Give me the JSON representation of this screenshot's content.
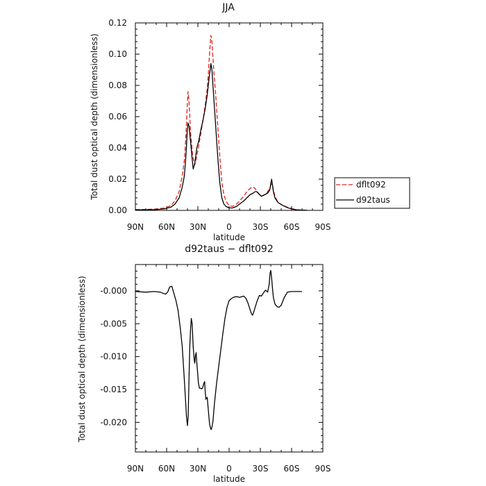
{
  "chart_data": [
    {
      "type": "line",
      "title": "JJA",
      "xlabel": "latitude",
      "ylabel": "Total dust optical depth (dimensionless)",
      "xlim": [
        90,
        -90
      ],
      "ylim": [
        0,
        0.12
      ],
      "x_ticks": [
        "90N",
        "60N",
        "30N",
        "0",
        "30S",
        "60S",
        "90S"
      ],
      "y_ticks": [
        "0.00",
        "0.02",
        "0.04",
        "0.06",
        "0.08",
        "0.10",
        "0.12"
      ],
      "legend": {
        "placement": "right",
        "entries": [
          "dflt092",
          "d92taus"
        ]
      },
      "series": [
        {
          "name": "dflt092",
          "color": "#e0201b",
          "dash": "dashed",
          "x": [
            90,
            80,
            70,
            62,
            56,
            52,
            48,
            45,
            43,
            42,
            41,
            40.3,
            39.5,
            38.5,
            37,
            35,
            33,
            31,
            29,
            27,
            25,
            23,
            21,
            20,
            19,
            18.2,
            17.5,
            16.5,
            15,
            13,
            11,
            9,
            7,
            5,
            3,
            0,
            -3,
            -7,
            -10,
            -14,
            -17,
            -20,
            -23,
            -25,
            -27,
            -29,
            -31,
            -34,
            -37,
            -39,
            -40,
            -40.8,
            -41.7,
            -42.5,
            -44,
            -47,
            -52,
            -57,
            -61,
            -65,
            -70,
            -75
          ],
          "y": [
            0.0005,
            0.0006,
            0.0009,
            0.0015,
            0.003,
            0.006,
            0.012,
            0.022,
            0.032,
            0.042,
            0.055,
            0.065,
            0.076,
            0.07,
            0.05,
            0.035,
            0.029,
            0.035,
            0.042,
            0.05,
            0.058,
            0.067,
            0.078,
            0.087,
            0.098,
            0.106,
            0.112,
            0.108,
            0.092,
            0.075,
            0.055,
            0.035,
            0.018,
            0.01,
            0.006,
            0.003,
            0.0025,
            0.004,
            0.006,
            0.009,
            0.012,
            0.014,
            0.015,
            0.014,
            0.012,
            0.01,
            0.009,
            0.01,
            0.012,
            0.014,
            0.016,
            0.017,
            0.016,
            0.013,
            0.009,
            0.005,
            0.003,
            0.0017,
            0.001,
            0.0004,
            0.0002,
            0.0001
          ]
        },
        {
          "name": "d92taus",
          "color": "#000000",
          "dash": "solid",
          "x": [
            90,
            80,
            70,
            62,
            56,
            52,
            48,
            45,
            43,
            42,
            41,
            40.3,
            39.5,
            38.5,
            37,
            35.5,
            34.5,
            33,
            31,
            29,
            27,
            25,
            23,
            21,
            20,
            19,
            18.2,
            17.5,
            16.5,
            15,
            13,
            11,
            9,
            7,
            5,
            3,
            0,
            -3,
            -7,
            -10,
            -14,
            -17,
            -20,
            -23,
            -25,
            -26.5,
            -28,
            -31,
            -34,
            -37,
            -39,
            -40,
            -40.8,
            -41.7,
            -42.5,
            -44,
            -47,
            -52,
            -57,
            -61,
            -65,
            -70,
            -75
          ],
          "y": [
            0.0003,
            0.0004,
            0.0005,
            0.001,
            0.002,
            0.004,
            0.008,
            0.015,
            0.022,
            0.03,
            0.04,
            0.05,
            0.056,
            0.054,
            0.044,
            0.033,
            0.0265,
            0.03,
            0.04,
            0.045,
            0.052,
            0.058,
            0.065,
            0.074,
            0.08,
            0.086,
            0.09,
            0.094,
            0.09,
            0.075,
            0.055,
            0.035,
            0.018,
            0.008,
            0.004,
            0.0025,
            0.0016,
            0.0015,
            0.0025,
            0.004,
            0.006,
            0.008,
            0.01,
            0.011,
            0.012,
            0.012,
            0.011,
            0.009,
            0.01,
            0.011,
            0.013,
            0.017,
            0.02,
            0.016,
            0.012,
            0.008,
            0.005,
            0.003,
            0.0015,
            0.0008,
            0.0003,
            0.0001,
            0.0001
          ]
        }
      ]
    },
    {
      "type": "line",
      "title": "d92taus − dflt092",
      "xlabel": "latitude",
      "ylabel": "Total dust optical depth (dimensionless)",
      "xlim": [
        90,
        -90
      ],
      "ylim": [
        -0.0245,
        0.004
      ],
      "x_ticks": [
        "90N",
        "60N",
        "30N",
        "0",
        "30S",
        "60S",
        "90S"
      ],
      "y_ticks": [
        "-0.000",
        "-0.005",
        "-0.010",
        "-0.015",
        "-0.020"
      ],
      "y_tick_values": [
        0,
        -0.005,
        -0.01,
        -0.015,
        -0.02
      ],
      "series": [
        {
          "name": "d92taus − dflt092",
          "color": "#000000",
          "dash": "solid",
          "x": [
            90,
            80,
            72,
            66,
            63,
            61,
            59,
            57,
            55,
            53,
            51,
            49,
            47,
            45,
            44,
            43,
            42,
            41,
            40.5,
            40,
            39.3,
            38.6,
            37.8,
            37,
            36.3,
            35.5,
            34.5,
            33.5,
            33,
            32.3,
            31.7,
            31,
            30.2,
            29.5,
            28.5,
            27.5,
            26.5,
            25.5,
            24.5,
            23.5,
            23,
            22.3,
            21.7,
            21,
            20.3,
            19.5,
            18.7,
            18,
            17.3,
            16.6,
            15.5,
            14,
            12,
            10,
            8,
            6,
            4,
            2,
            0,
            -2,
            -4,
            -6,
            -8,
            -10,
            -12,
            -14,
            -16,
            -18,
            -20,
            -21.5,
            -22.5,
            -23.5,
            -25,
            -27,
            -29,
            -31,
            -33,
            -35,
            -37,
            -38.5,
            -39.3,
            -40,
            -40.8,
            -41.7,
            -42.5,
            -44,
            -46,
            -48,
            -50,
            -53,
            -56,
            -60,
            -65,
            -70
          ],
          "y": [
            -0.0001,
            -0.0002,
            -0.0001,
            -0.0002,
            -0.0004,
            -0.0005,
            -0.0002,
            0.0006,
            0.0007,
            -0.0004,
            -0.0015,
            -0.003,
            -0.0055,
            -0.0085,
            -0.011,
            -0.0135,
            -0.0162,
            -0.019,
            -0.0198,
            -0.0205,
            -0.019,
            -0.014,
            -0.0085,
            -0.0058,
            -0.0042,
            -0.005,
            -0.0085,
            -0.0105,
            -0.011,
            -0.0098,
            -0.0094,
            -0.011,
            -0.0125,
            -0.014,
            -0.0148,
            -0.0148,
            -0.0149,
            -0.0148,
            -0.0142,
            -0.0138,
            -0.0152,
            -0.0165,
            -0.0163,
            -0.0162,
            -0.0175,
            -0.019,
            -0.0203,
            -0.0208,
            -0.0211,
            -0.0208,
            -0.0198,
            -0.017,
            -0.014,
            -0.0115,
            -0.009,
            -0.0065,
            -0.0042,
            -0.0025,
            -0.0015,
            -0.0012,
            -0.001,
            -0.0009,
            -0.0009,
            -0.001,
            -0.0009,
            -0.0008,
            -0.0011,
            -0.0018,
            -0.0028,
            -0.0035,
            -0.0037,
            -0.0033,
            -0.0025,
            -0.0015,
            -0.0007,
            -0.0008,
            -0.0003,
            0.0001,
            -0.0002,
            0.001,
            0.0027,
            0.0031,
            0.002,
            0.0003,
            -0.001,
            -0.002,
            -0.0024,
            -0.0025,
            -0.0022,
            -0.001,
            -0.0002,
            -0.0001,
            -0.0001,
            -0.0001
          ]
        }
      ]
    }
  ]
}
